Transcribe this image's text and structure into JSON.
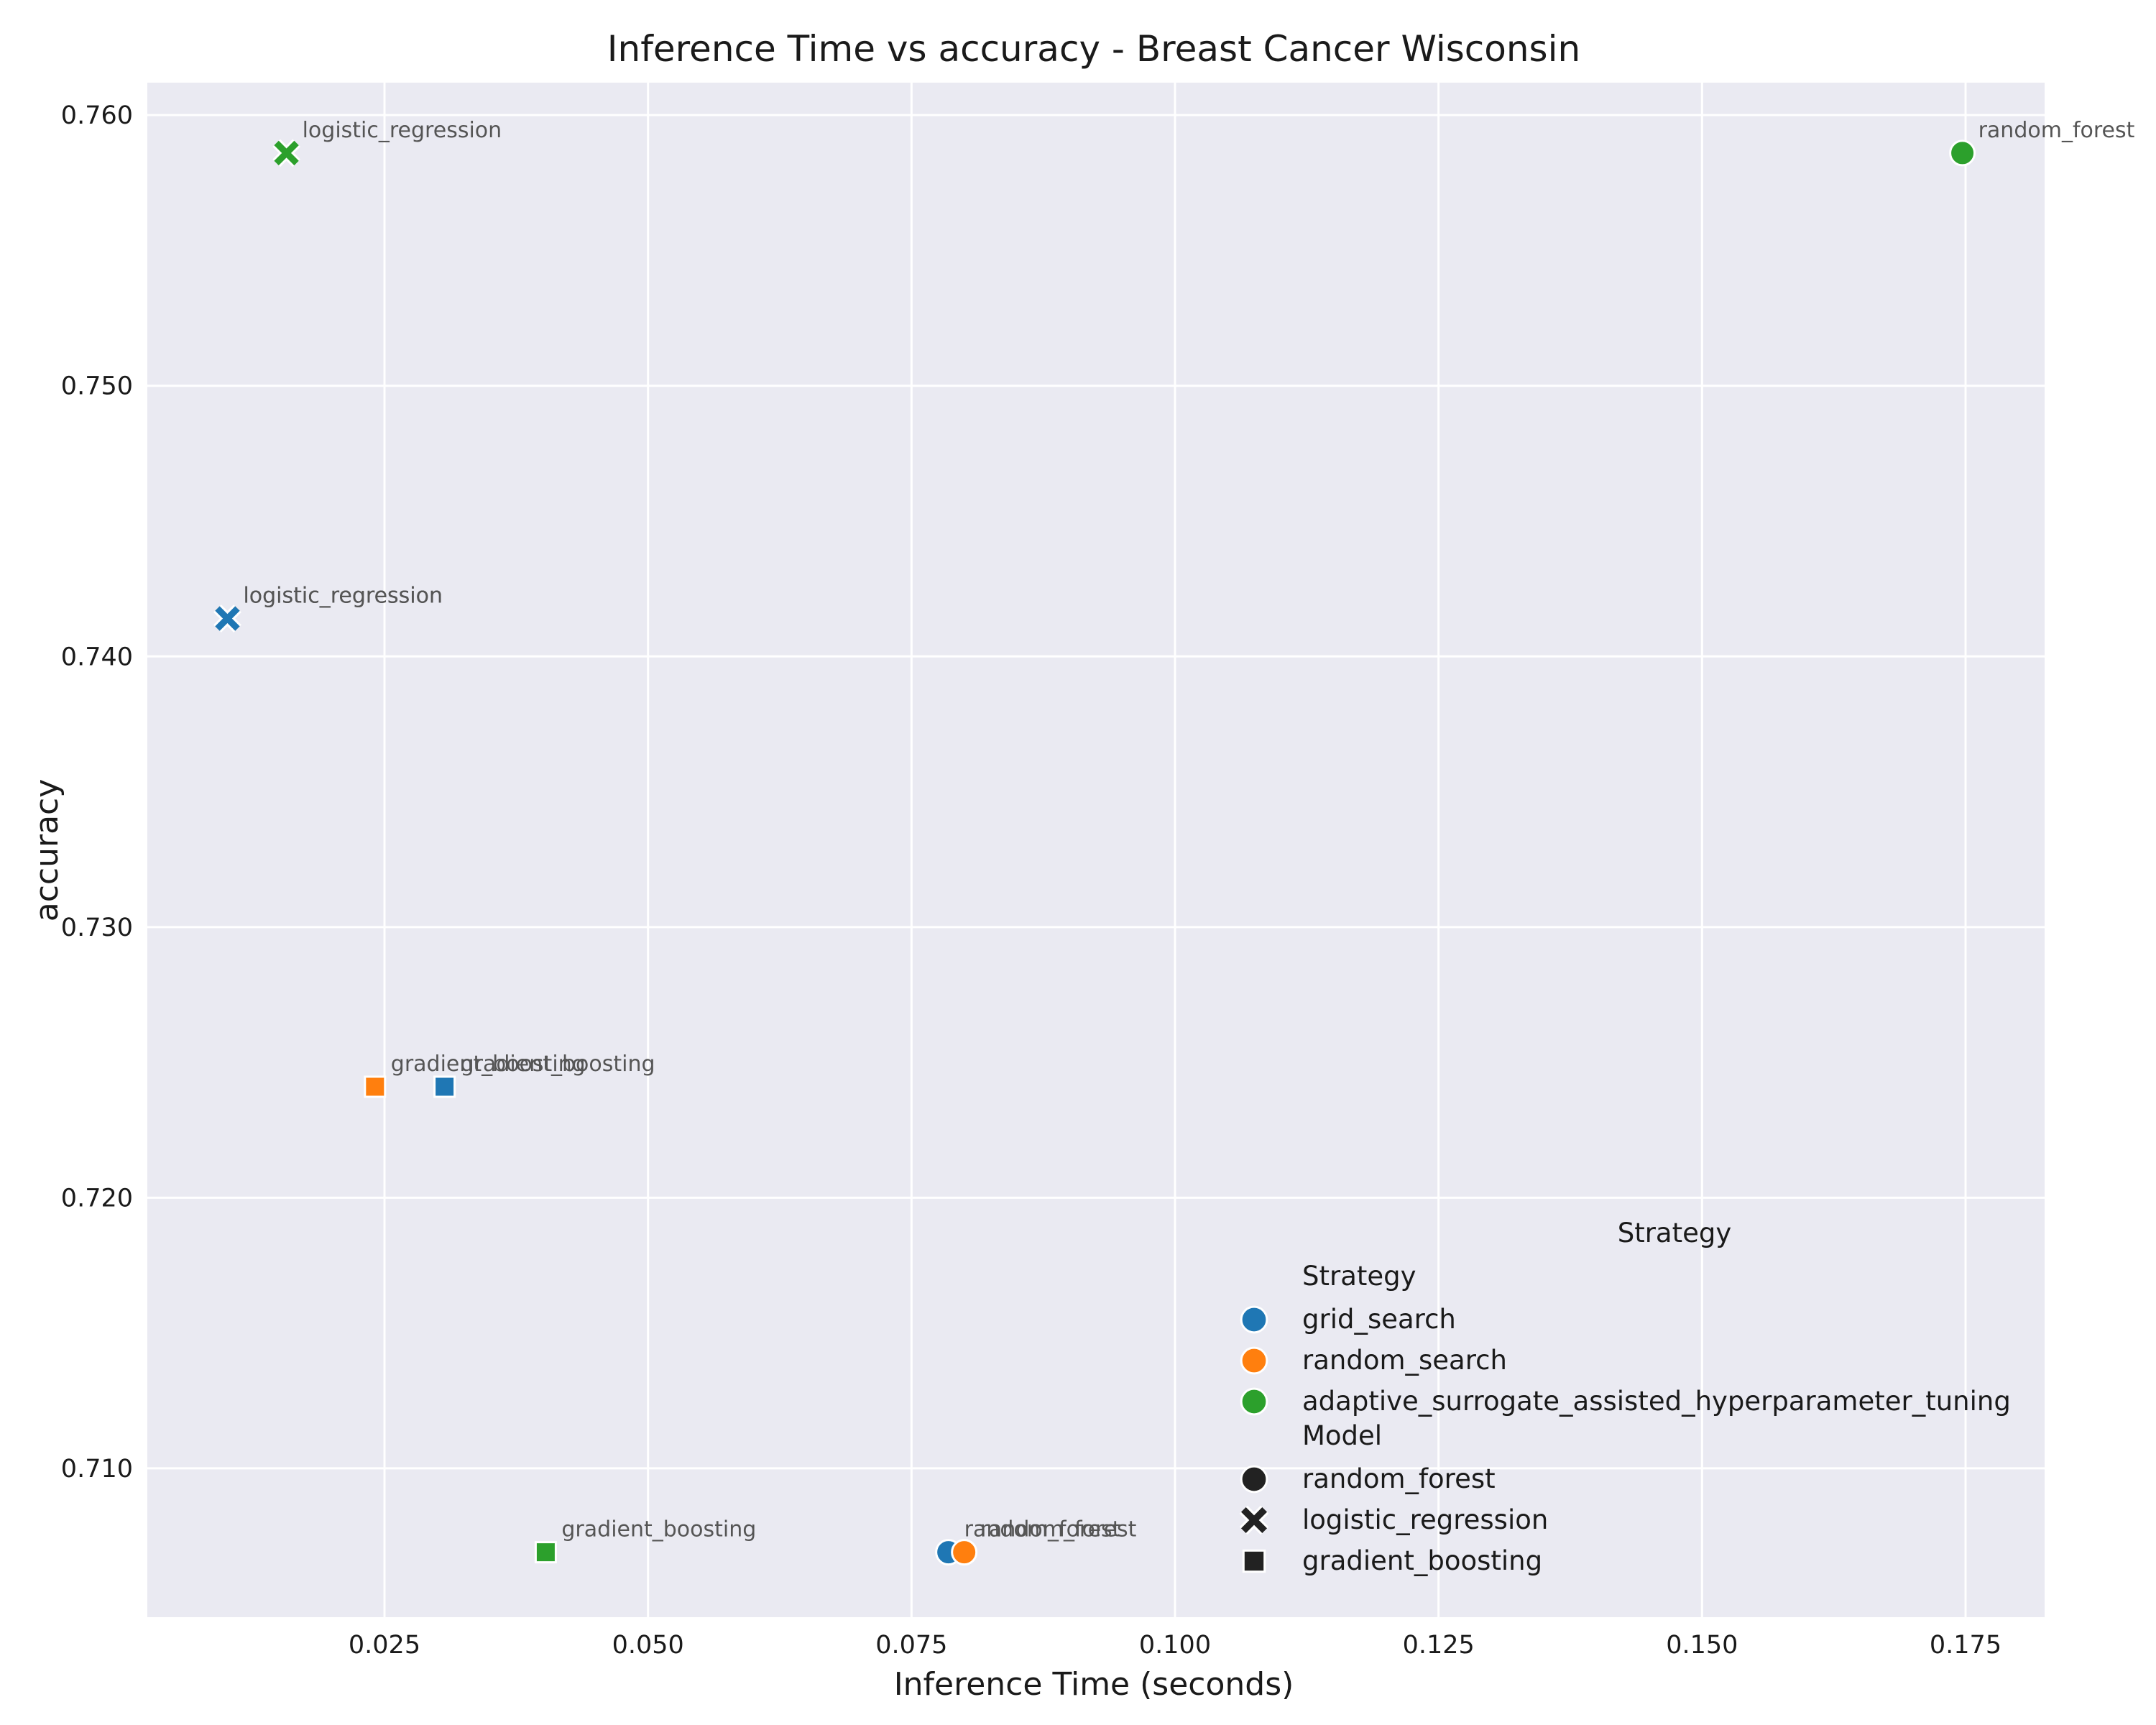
{
  "chart_data": {
    "type": "scatter",
    "title": "Inference Time vs accuracy - Breast Cancer Wisconsin",
    "xlabel": "Inference Time (seconds)",
    "ylabel": "accuracy",
    "xlim": [
      0.0025,
      0.1825
    ],
    "ylim": [
      0.7045,
      0.7612
    ],
    "xticks": [
      "0.025",
      "0.050",
      "0.075",
      "0.100",
      "0.125",
      "0.150",
      "0.175"
    ],
    "yticks": [
      "0.710",
      "0.720",
      "0.730",
      "0.740",
      "0.750",
      "0.760"
    ],
    "grid": true,
    "colors": {
      "grid_search": "#1f77b4",
      "random_search": "#ff7f0e",
      "adaptive_surrogate_assisted_hyperparameter_tuning": "#2ca02c",
      "background": "#eaeaf2",
      "grid_line": "#ffffff"
    },
    "points": [
      {
        "x": 0.0157,
        "y": 0.7586,
        "strategy": "adaptive_surrogate_assisted_hyperparameter_tuning",
        "model": "logistic_regression",
        "label": "logistic_regression"
      },
      {
        "x": 0.1747,
        "y": 0.7586,
        "strategy": "adaptive_surrogate_assisted_hyperparameter_tuning",
        "model": "random_forest",
        "label": "random_forest"
      },
      {
        "x": 0.0101,
        "y": 0.7414,
        "strategy": "random_search",
        "model": "logistic_regression",
        "label": "logistic_regression"
      },
      {
        "x": 0.0101,
        "y": 0.7414,
        "strategy": "grid_search",
        "model": "logistic_regression",
        "label": "logistic_regression"
      },
      {
        "x": 0.0241,
        "y": 0.7241,
        "strategy": "random_search",
        "model": "gradient_boosting",
        "label": "gradient_boosting"
      },
      {
        "x": 0.0307,
        "y": 0.7241,
        "strategy": "grid_search",
        "model": "gradient_boosting",
        "label": "gradient_boosting"
      },
      {
        "x": 0.0403,
        "y": 0.7069,
        "strategy": "adaptive_surrogate_assisted_hyperparameter_tuning",
        "model": "gradient_boosting",
        "label": "gradient_boosting"
      },
      {
        "x": 0.0785,
        "y": 0.7069,
        "strategy": "grid_search",
        "model": "random_forest",
        "label": "random_forest"
      },
      {
        "x": 0.08,
        "y": 0.7069,
        "strategy": "random_search",
        "model": "random_forest",
        "label": "random_forest"
      }
    ],
    "legend": {
      "placement": "lower-right",
      "title": "Strategy",
      "strategy_heading": "Strategy",
      "strategies": [
        "grid_search",
        "random_search",
        "adaptive_surrogate_assisted_hyperparameter_tuning"
      ],
      "model_heading": "Model",
      "models": [
        {
          "name": "random_forest",
          "marker": "circle"
        },
        {
          "name": "logistic_regression",
          "marker": "x"
        },
        {
          "name": "gradient_boosting",
          "marker": "square"
        }
      ]
    }
  }
}
